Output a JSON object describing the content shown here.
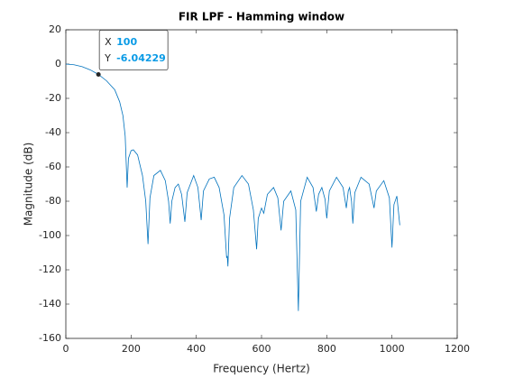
{
  "chart_data": {
    "type": "line",
    "title": "FIR LPF - Hamming window",
    "xlabel": "Frequency (Hertz)",
    "ylabel": "Magnitude (dB)",
    "xlim": [
      0,
      1200
    ],
    "xticks": [
      0,
      200,
      400,
      600,
      800,
      1000,
      1200
    ],
    "ylim": [
      -160,
      20
    ],
    "yticks": [
      -160,
      -140,
      -120,
      -100,
      -80,
      -60,
      -40,
      -20,
      0,
      20
    ],
    "grid": false,
    "series": [
      {
        "color": "#0072bd",
        "x": [
          0,
          25,
          50,
          75,
          100,
          125,
          150,
          165,
          175,
          182,
          188,
          192,
          200,
          207,
          220,
          235,
          245,
          252,
          258,
          270,
          290,
          305,
          315,
          320,
          325,
          335,
          345,
          355,
          365,
          372,
          392,
          405,
          415,
          422,
          440,
          455,
          470,
          485,
          493,
          495,
          497,
          502,
          515,
          540,
          560,
          575,
          585,
          590,
          600,
          607,
          612,
          618,
          637,
          650,
          660,
          668,
          690,
          705,
          713,
          720,
          740,
          758,
          768,
          775,
          785,
          795,
          800,
          808,
          830,
          850,
          860,
          866,
          870,
          876,
          880,
          886,
          905,
          930,
          945,
          952,
          975,
          992,
          1000,
          1006,
          1015,
          1024
        ],
        "values": [
          0,
          -0.4,
          -1.5,
          -3.4,
          -6.04229,
          -9.8,
          -15,
          -22,
          -30,
          -42,
          -72,
          -55,
          -50.5,
          -50,
          -53,
          -65,
          -80,
          -105,
          -78,
          -65,
          -62,
          -68,
          -80,
          -93,
          -80,
          -72,
          -70,
          -76,
          -92,
          -75,
          -65,
          -72,
          -91,
          -74,
          -67,
          -66,
          -72,
          -88,
          -113,
          -112,
          -118,
          -90,
          -72,
          -65,
          -70,
          -85,
          -108,
          -90,
          -84,
          -87,
          -82,
          -76,
          -72,
          -78,
          -97,
          -80,
          -74,
          -85,
          -144,
          -80,
          -66,
          -72,
          -86,
          -76,
          -72,
          -79,
          -90,
          -74,
          -66,
          -72,
          -84,
          -74,
          -72,
          -80,
          -93,
          -75,
          -66,
          -70,
          -84,
          -74,
          -68,
          -78,
          -107,
          -82,
          -77,
          -94
        ]
      }
    ],
    "datatip": {
      "x_label": "X",
      "y_label": "Y",
      "x": 100,
      "y": -6.04229
    }
  }
}
